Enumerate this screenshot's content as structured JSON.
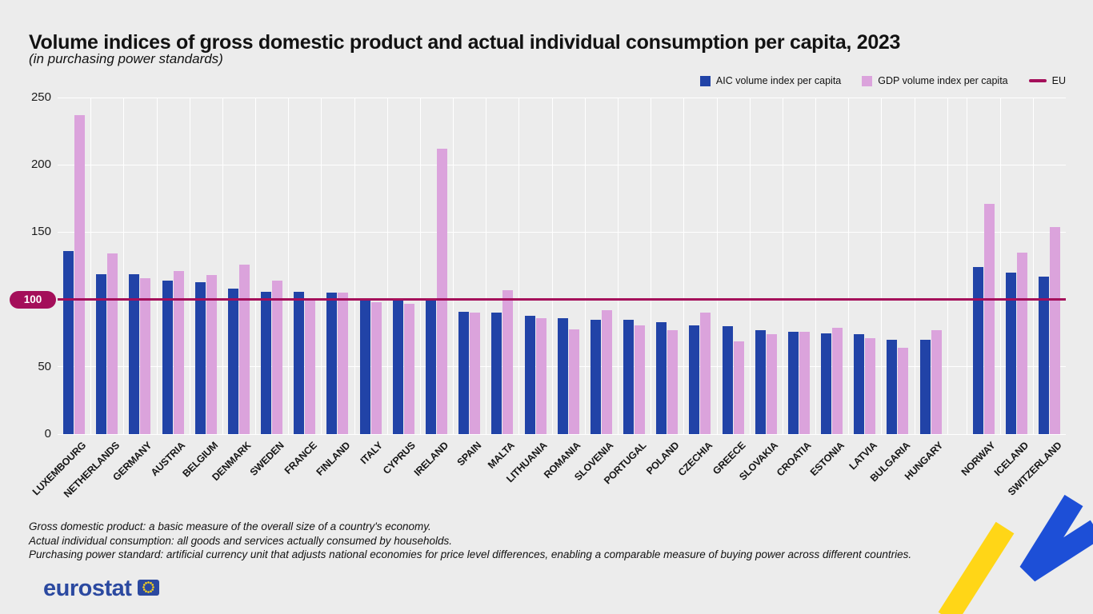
{
  "header": {
    "title": "Volume indices of gross domestic product and actual individual consumption per capita, 2023",
    "subtitle": "(in purchasing power standards)"
  },
  "colors": {
    "aic_bar": "#2143a7",
    "gdp_bar": "#dba3dc",
    "eu_line": "#a40f5a",
    "page_background": "#ececec",
    "gridline": "#ffffff",
    "logo_blue": "#2b49a0",
    "accent_blue": "#1d4fd7",
    "accent_yellow": "#ffd617"
  },
  "chart_data": {
    "type": "bar",
    "title": "Volume indices of gross domestic product and actual individual consumption per capita, 2023",
    "subtitle": "(in purchasing power standards)",
    "ylim": [
      0,
      250
    ],
    "yticks": [
      0,
      50,
      100,
      150,
      200,
      250
    ],
    "grid": true,
    "legend_position": "top-right",
    "reference_line": {
      "label": "EU",
      "value": 100
    },
    "gap_before": "NORWAY",
    "categories": [
      "LUXEMBOURG",
      "NETHERLANDS",
      "GERMANY",
      "AUSTRIA",
      "BELGIUM",
      "DENMARK",
      "SWEDEN",
      "FRANCE",
      "FINLAND",
      "ITALY",
      "CYPRUS",
      "IRELAND",
      "SPAIN",
      "MALTA",
      "LITHUANIA",
      "ROMANIA",
      "SLOVENIA",
      "PORTUGAL",
      "POLAND",
      "CZECHIA",
      "GREECE",
      "SLOVAKIA",
      "CROATIA",
      "ESTONIA",
      "LATVIA",
      "BULGARIA",
      "HUNGARY",
      "NORWAY",
      "ICELAND",
      "SWITZERLAND"
    ],
    "series": [
      {
        "name": "AIC volume index per capita",
        "values": [
          136,
          119,
          119,
          114,
          113,
          108,
          106,
          106,
          105,
          99,
          99,
          99,
          91,
          90,
          88,
          86,
          85,
          85,
          83,
          81,
          80,
          77,
          76,
          75,
          74,
          70,
          70,
          124,
          120,
          117
        ]
      },
      {
        "name": "GDP volume index per capita",
        "values": [
          237,
          134,
          116,
          121,
          118,
          126,
          114,
          101,
          105,
          98,
          97,
          212,
          90,
          107,
          86,
          78,
          92,
          81,
          77,
          90,
          69,
          74,
          76,
          79,
          71,
          64,
          77,
          171,
          135,
          154
        ]
      }
    ]
  },
  "notes": {
    "lines": [
      "Gross domestic product: a basic measure of the overall size of a country's economy.",
      "Actual individual consumption: all goods and services actually consumed by households.",
      "Purchasing power standard: artificial currency unit that adjusts national economies for price level differences, enabling a comparable measure of buying power across different countries."
    ]
  },
  "footer": {
    "logo_text": "eurostat"
  }
}
